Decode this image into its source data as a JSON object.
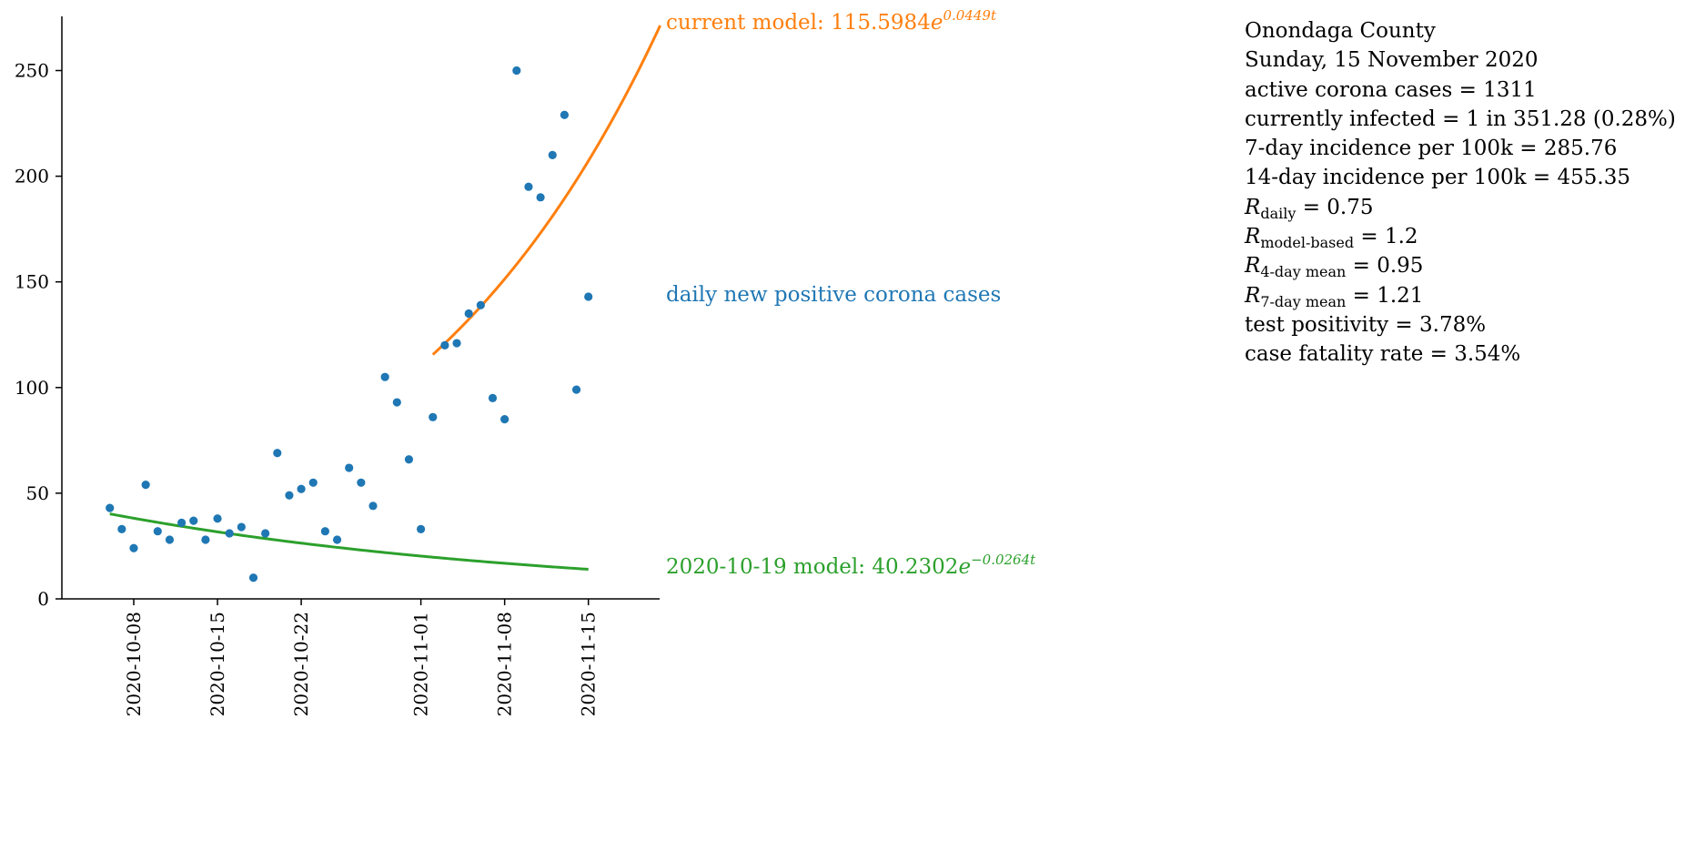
{
  "chart_data": {
    "type": "scatter",
    "x_type": "date",
    "ylim": [
      0,
      270
    ],
    "y_ticks": [
      0,
      50,
      100,
      150,
      200,
      250
    ],
    "x_ticks": [
      "2020-10-08",
      "2020-10-15",
      "2020-10-22",
      "2020-11-01",
      "2020-11-08",
      "2020-11-15"
    ],
    "colors": {
      "data": "#1f77b4",
      "current_model": "#ff7f0e",
      "old_model": "#2ca02c"
    },
    "series": [
      {
        "name": "daily new positive corona cases",
        "type": "scatter",
        "x": [
          "2020-10-06",
          "2020-10-07",
          "2020-10-08",
          "2020-10-09",
          "2020-10-10",
          "2020-10-11",
          "2020-10-12",
          "2020-10-13",
          "2020-10-14",
          "2020-10-15",
          "2020-10-16",
          "2020-10-17",
          "2020-10-18",
          "2020-10-19",
          "2020-10-20",
          "2020-10-21",
          "2020-10-22",
          "2020-10-23",
          "2020-10-24",
          "2020-10-25",
          "2020-10-26",
          "2020-10-27",
          "2020-10-28",
          "2020-10-29",
          "2020-10-30",
          "2020-10-31",
          "2020-11-01",
          "2020-11-02",
          "2020-11-03",
          "2020-11-04",
          "2020-11-05",
          "2020-11-06",
          "2020-11-07",
          "2020-11-08",
          "2020-11-09",
          "2020-11-10",
          "2020-11-11",
          "2020-11-12",
          "2020-11-13",
          "2020-11-14",
          "2020-11-15"
        ],
        "y": [
          43,
          33,
          24,
          54,
          32,
          28,
          36,
          37,
          28,
          38,
          31,
          34,
          10,
          31,
          69,
          49,
          52,
          55,
          32,
          28,
          62,
          55,
          44,
          105,
          93,
          66,
          33,
          86,
          120,
          121,
          135,
          139,
          95,
          85,
          250,
          195,
          190,
          210,
          229,
          99,
          143
        ]
      },
      {
        "name": "current model",
        "type": "line",
        "model": {
          "a": 115.5984,
          "b": 0.0449,
          "t0": "2020-11-02"
        },
        "x": [
          "2020-11-02",
          "2020-11-21"
        ],
        "label_prefix": "current model: ",
        "label_coef": "115.5984",
        "label_exp": "0.0449t"
      },
      {
        "name": "2020-10-19 model",
        "type": "line",
        "model": {
          "a": 40.2302,
          "b": -0.0264,
          "t0": "2020-10-06"
        },
        "x": [
          "2020-10-06",
          "2020-11-15"
        ],
        "label_prefix": "2020-10-19 model: ",
        "label_coef": "40.2302",
        "label_exp": "−0.0264t"
      }
    ]
  },
  "info": {
    "county": "Onondaga County",
    "date": "Sunday, 15 November 2020",
    "active_cases": "active corona cases = 1311",
    "currently_infected": "currently infected = 1 in 351.28 (0.28%)",
    "incidence_7": "7-day incidence per 100k = 285.76",
    "incidence_14": "14-day incidence per 100k = 455.35",
    "r_daily_sub": "daily",
    "r_daily_val": " = 0.75",
    "r_model_sub": "model-based",
    "r_model_val": " = 1.2",
    "r_4day_sub": "4-day mean",
    "r_4day_val": " = 0.95",
    "r_7day_sub": "7-day mean",
    "r_7day_val": " = 1.21",
    "test_positivity": "test positivity = 3.78%",
    "case_fatality": "case fatality rate = 3.54%"
  }
}
